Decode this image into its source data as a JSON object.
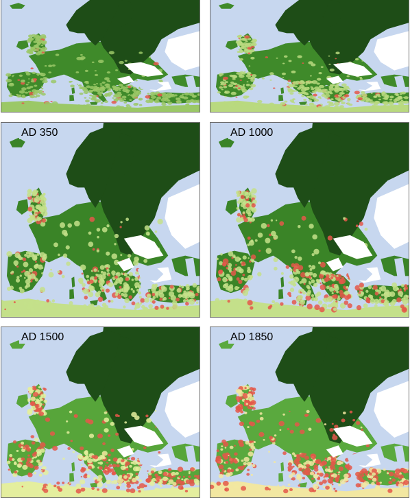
{
  "panels": [
    {
      "id": "top-left",
      "label": "",
      "forest": "#3f8a2a",
      "dark": "#1e4d17",
      "light": "#9bc867",
      "crop": 0.05
    },
    {
      "id": "top-right",
      "label": "",
      "forest": "#3f8a2a",
      "dark": "#1e4d17",
      "light": "#b9d97f",
      "crop": 0.12
    },
    {
      "id": "ad-350",
      "label": "AD 350",
      "forest": "#3a8427",
      "dark": "#1e4d17",
      "light": "#c4e08a",
      "crop": 0.25
    },
    {
      "id": "ad-1000",
      "label": "AD 1000",
      "forest": "#3a8427",
      "dark": "#1e4d17",
      "light": "#c4e08a",
      "crop": 0.3
    },
    {
      "id": "ad-1500",
      "label": "AD 1500",
      "forest": "#57a53a",
      "dark": "#1e4d17",
      "light": "#e4ee9e",
      "crop": 0.45
    },
    {
      "id": "ad-1850",
      "label": "AD 1850",
      "forest": "#5aa93e",
      "dark": "#1e4d17",
      "light": "#f2e7a1",
      "crop": 0.6
    }
  ],
  "colors": {
    "sea": "#c7d7ef",
    "ice": "#ffffff",
    "crop": "#e4584a",
    "border": "#6b6b6b"
  }
}
